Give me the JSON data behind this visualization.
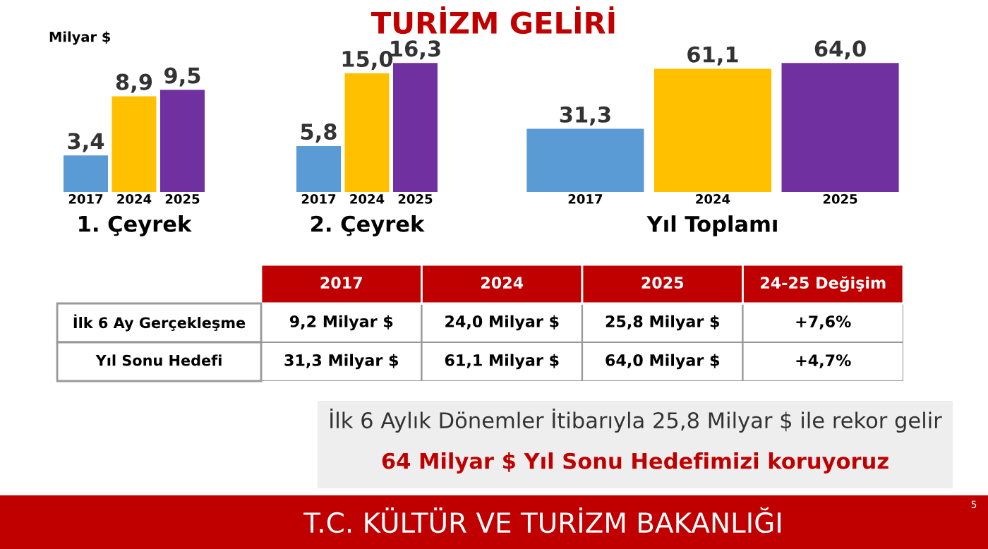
{
  "chart_data": [
    {
      "type": "bar",
      "title": "1. Çeyrek",
      "ylabel": "Milyar $",
      "categories": [
        "2017",
        "2024",
        "2025"
      ],
      "values": [
        3.4,
        8.9,
        9.5
      ],
      "colors": [
        "#5b9bd5",
        "#ffc000",
        "#7030a0"
      ],
      "value_labels": [
        "3,4",
        "8,9",
        "9,5"
      ]
    },
    {
      "type": "bar",
      "title": "2. Çeyrek",
      "categories": [
        "2017",
        "2024",
        "2025"
      ],
      "values": [
        5.8,
        15.0,
        16.3
      ],
      "colors": [
        "#5b9bd5",
        "#ffc000",
        "#7030a0"
      ],
      "value_labels": [
        "5,8",
        "15,0",
        "16,3"
      ]
    },
    {
      "type": "bar",
      "title": "Yıl Toplamı",
      "categories": [
        "2017",
        "2024",
        "2025"
      ],
      "values": [
        31.3,
        61.1,
        64.0
      ],
      "colors": [
        "#5b9bd5",
        "#ffc000",
        "#7030a0"
      ],
      "value_labels": [
        "31,3",
        "61,1",
        "64,0"
      ]
    },
    {
      "type": "other",
      "categories": [
        "2017",
        "2024",
        "2025",
        "24-25 Değişim"
      ],
      "y_categories": [
        "İlk 6 Ay Gerçekleşme",
        "Yıl Sonu Hedefi"
      ],
      "cell_labels": [
        [
          "9,2 Milyar $",
          "24,0 Milyar $",
          "25,8 Milyar $",
          "+7,6%"
        ],
        [
          "31,3 Milyar $",
          "61,1 Milyar $",
          "64,0 Milyar $",
          "+4,7%"
        ]
      ]
    },
    {
      "type": "other",
      "title": "TURİZM GELİRİ",
      "annotations": [
        "İlk 6 Aylık Dönemler İtibarıyla 25,8 Milyar $ ile rekor gelir",
        "64 Milyar $ Yıl Sonu Hedefimizi koruyoruz",
        "T.C. KÜLTÜR VE TURİZM BAKANLIĞI",
        "5"
      ]
    }
  ]
}
